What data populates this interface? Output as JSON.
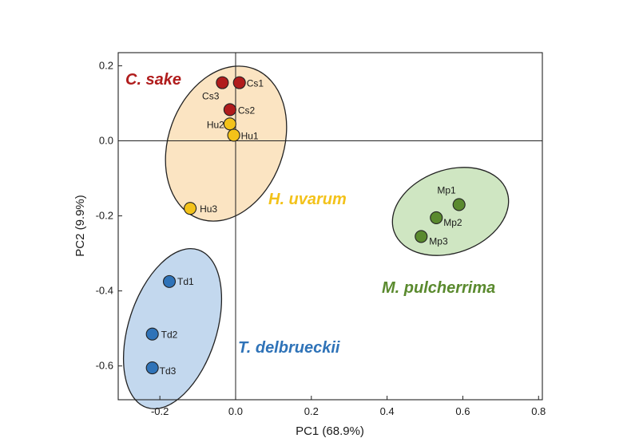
{
  "chart_data": {
    "type": "scatter",
    "title": "",
    "xlabel": "PC1 (68.9%)",
    "ylabel": "PC2 (9.9%)",
    "xlim": [
      -0.31,
      0.81
    ],
    "ylim": [
      -0.69,
      0.235
    ],
    "xticks": [
      -0.2,
      0.0,
      0.2,
      0.4,
      0.6,
      0.8
    ],
    "xtick_labels": [
      "-0.2",
      "0.0",
      "0.2",
      "0.4",
      "0.6",
      "0.8"
    ],
    "yticks": [
      0.2,
      0.0,
      -0.2,
      -0.4,
      -0.6
    ],
    "ytick_labels": [
      "0.2",
      "0.0",
      "-0.2",
      "-0.4",
      "-0.6"
    ],
    "reference_lines": {
      "x": 0,
      "y": 0
    },
    "grid": false,
    "groups": [
      {
        "name": "C. sake",
        "color": "#b01c1c",
        "ellipse_color": "#f9e3c2",
        "points": [
          {
            "label": "Cs1",
            "x": 0.01,
            "y": 0.155
          },
          {
            "label": "Cs3",
            "x": -0.035,
            "y": 0.155
          },
          {
            "label": "Cs2",
            "x": -0.015,
            "y": 0.083
          }
        ]
      },
      {
        "name": "H. uvarum",
        "color": "#f3c21a",
        "ellipse_color": "#f9e3c2",
        "points": [
          {
            "label": "Hu2",
            "x": -0.015,
            "y": 0.045
          },
          {
            "label": "Hu1",
            "x": -0.005,
            "y": 0.015
          },
          {
            "label": "Hu3",
            "x": -0.12,
            "y": -0.18
          }
        ]
      },
      {
        "name": "M. pulcherrima",
        "color": "#5a8a2e",
        "ellipse_color": "#cfe6c2",
        "points": [
          {
            "label": "Mp1",
            "x": 0.59,
            "y": -0.17
          },
          {
            "label": "Mp2",
            "x": 0.53,
            "y": -0.205
          },
          {
            "label": "Mp3",
            "x": 0.49,
            "y": -0.255
          }
        ]
      },
      {
        "name": "T. delbrueckii",
        "color": "#2f73b8",
        "ellipse_color": "#c3d8ee",
        "points": [
          {
            "label": "Td1",
            "x": -0.175,
            "y": -0.375
          },
          {
            "label": "Td2",
            "x": -0.22,
            "y": -0.515
          },
          {
            "label": "Td3",
            "x": -0.22,
            "y": -0.605
          }
        ]
      }
    ]
  }
}
